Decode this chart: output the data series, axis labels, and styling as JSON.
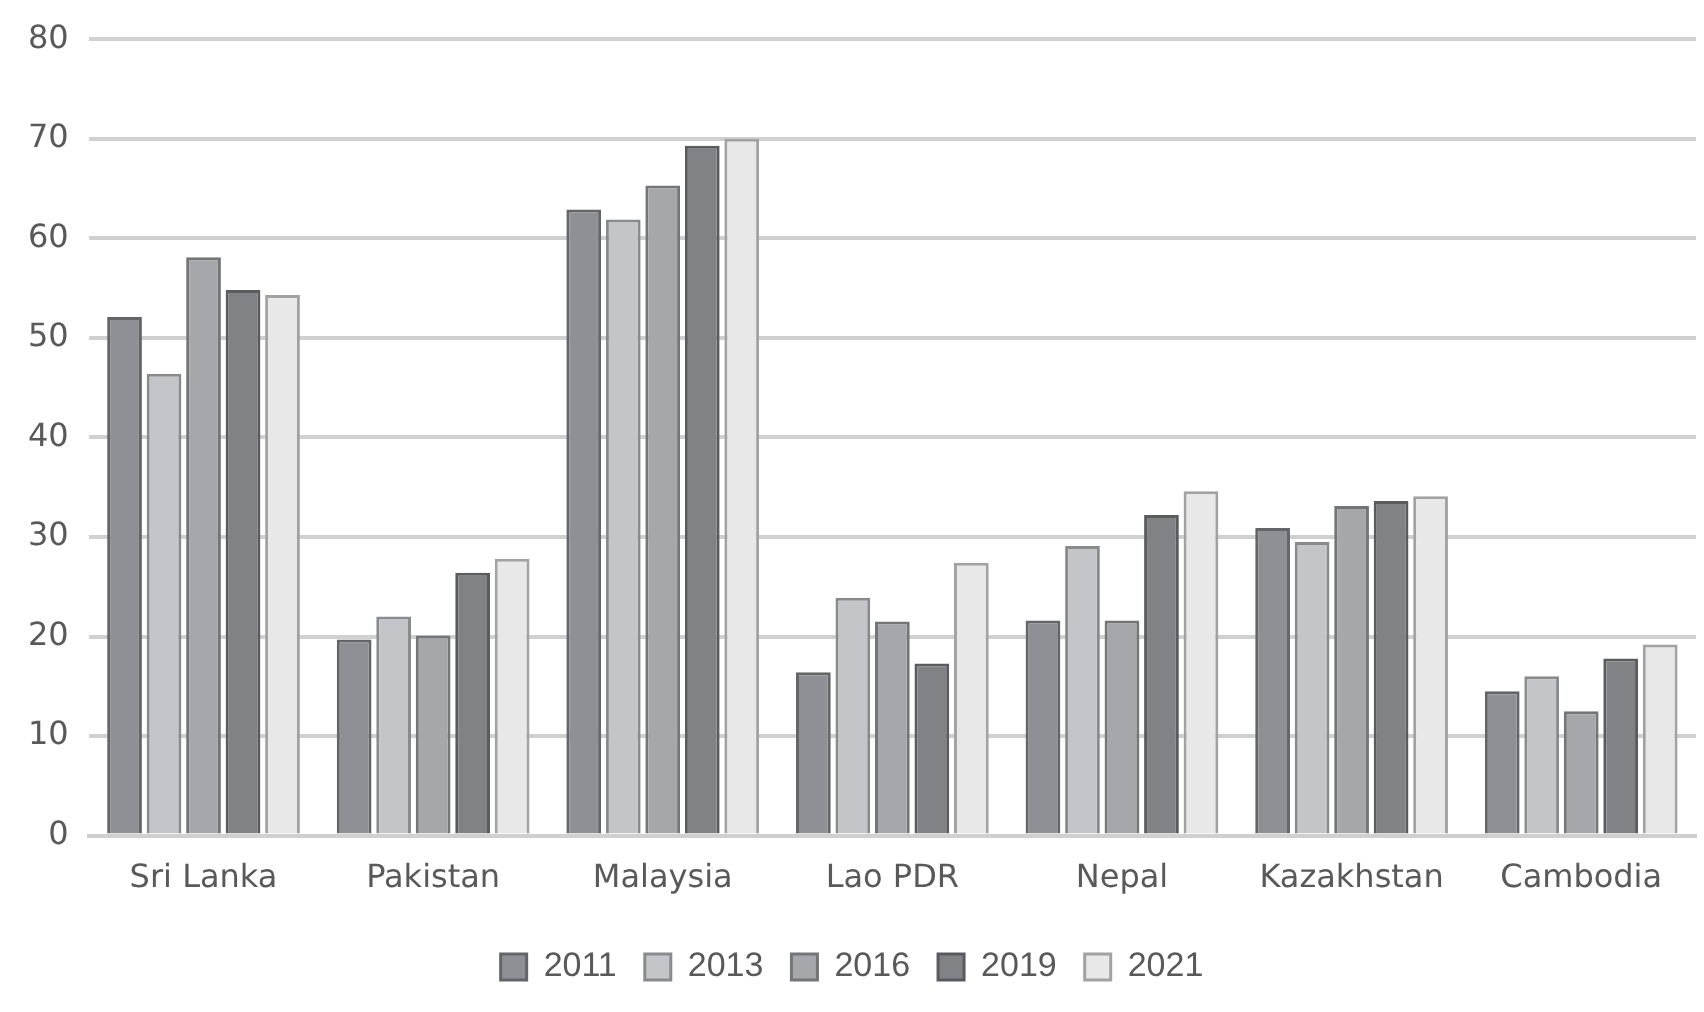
{
  "chart_data": {
    "type": "bar",
    "categories": [
      "Sri Lanka",
      "Pakistan",
      "Malaysia",
      "Lao PDR",
      "Nepal",
      "Kazakhstan",
      "Cambodia"
    ],
    "series": [
      {
        "name": "2011",
        "color": "#8f9095",
        "values": [
          52.1,
          19.7,
          62.9,
          16.4,
          21.6,
          30.9,
          14.5
        ]
      },
      {
        "name": "2013",
        "color": "#c4c5c8",
        "values": [
          46.4,
          22.0,
          61.9,
          23.9,
          29.1,
          29.5,
          16.0
        ]
      },
      {
        "name": "2016",
        "color": "#a6a7aa",
        "values": [
          58.1,
          20.1,
          65.3,
          21.5,
          21.6,
          33.1,
          12.5
        ]
      },
      {
        "name": "2019",
        "color": "#818286",
        "values": [
          54.8,
          26.4,
          69.3,
          17.3,
          32.2,
          33.6,
          17.8
        ]
      },
      {
        "name": "2021",
        "color": "#e8e8e9",
        "values": [
          54.3,
          27.8,
          70.0,
          27.4,
          34.6,
          34.1,
          19.2
        ]
      }
    ],
    "ylim": [
      0,
      80
    ],
    "yticks": [
      0,
      10,
      20,
      30,
      40,
      50,
      60,
      70,
      80
    ],
    "grid": "y",
    "legend": "bottom"
  }
}
